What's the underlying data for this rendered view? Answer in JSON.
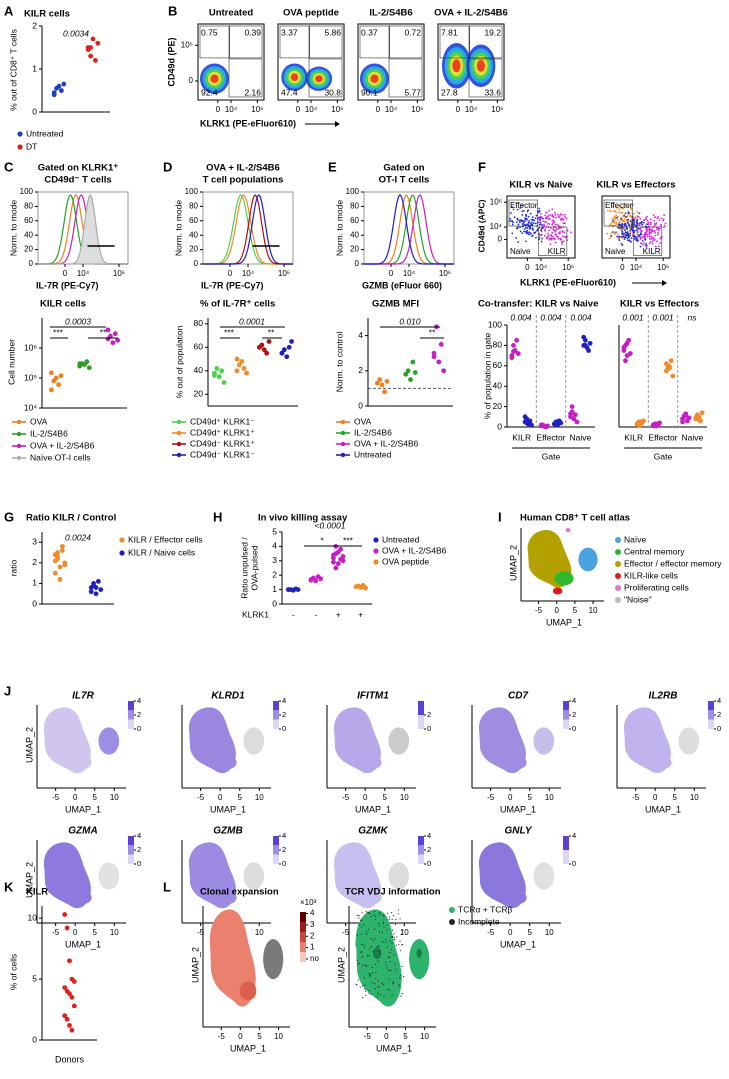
{
  "panel_labels": [
    "A",
    "B",
    "C",
    "D",
    "E",
    "F",
    "G",
    "H",
    "I",
    "J",
    "K",
    "L"
  ],
  "chart_data": [
    {
      "type": "strip",
      "title": "KILR cells",
      "ylabel": "% out of CD8⁺ T cells",
      "categories": [
        null,
        null
      ],
      "ylim": [
        0,
        2
      ],
      "yticks": [
        0,
        1,
        2
      ],
      "annotations": [
        "0.0034"
      ],
      "series": [
        {
          "name": "Untreated",
          "color": "#1f3fbf",
          "values": [
            [
              0.45,
              0.55,
              0.6,
              0.5,
              0.65,
              0.4
            ],
            null
          ]
        },
        {
          "name": "DT",
          "color": "#e0201b",
          "values": [
            null,
            [
              1.5,
              1.3,
              1.7,
              1.2,
              1.6,
              1.45,
              1.5
            ]
          ]
        }
      ]
    },
    {
      "type": "strip",
      "title": "KILR cells",
      "ylabel": "Cell number",
      "log": true,
      "categories": [
        null,
        null,
        null
      ],
      "ylim": [
        10000,
        10000000
      ],
      "yticks": [
        {
          "value": 10000,
          "label": "10⁴"
        },
        {
          "value": 100000,
          "label": "10⁵"
        },
        {
          "value": 1000000,
          "label": "10⁶"
        }
      ],
      "annotations": [
        "***",
        "0.0003",
        "**"
      ],
      "series": [
        {
          "name": "OVA",
          "color": "#f07f1e",
          "values": [
            [
              150000,
              80000,
              100000,
              60000,
              120000,
              40000
            ],
            null,
            null
          ]
        },
        {
          "name": "IL-2/S4B6",
          "color": "#2aa02a",
          "values": [
            null,
            [
              250000,
              300000,
              280000,
              350000,
              220000,
              300000
            ],
            null
          ]
        },
        {
          "name": "OVA + IL-2/S4B6",
          "color": "#c41ec4",
          "values": [
            null,
            null,
            [
              2000000,
              2500000,
              1500000,
              3000000,
              1800000,
              4000000
            ]
          ]
        }
      ],
      "legend_extra": {
        "name": "Naïve OT-I cells",
        "color": "#b0b0b0"
      }
    },
    {
      "type": "strip",
      "title": "% of IL-7R⁺ cells",
      "ylabel": "% out of population",
      "categories": [
        null,
        null,
        null,
        null
      ],
      "ylim": [
        10,
        85
      ],
      "yticks": [
        20,
        40,
        60,
        80
      ],
      "annotations": [
        "***",
        "0.0001",
        "**"
      ],
      "series": [
        {
          "name": "CD49d⁺ KLRK1⁻",
          "color": "#4cd14c",
          "values": [
            [
              38,
              42,
              35,
              40,
              30,
              36
            ],
            null,
            null,
            null
          ]
        },
        {
          "name": "CD49d⁺ KLRK1⁺",
          "color": "#f08a2a",
          "values": [
            null,
            [
              40,
              45,
              48,
              42,
              38,
              50
            ],
            null,
            null
          ]
        },
        {
          "name": "CD49d⁻ KLRK1⁺",
          "color": "#b01010",
          "values": [
            null,
            null,
            [
              60,
              62,
              58,
              55,
              65,
              60
            ],
            null
          ]
        },
        {
          "name": "CD49d⁻ KLRK1⁻",
          "color": "#2020c0",
          "values": [
            null,
            null,
            null,
            [
              55,
              58,
              52,
              60,
              65,
              55
            ]
          ]
        }
      ]
    },
    {
      "type": "strip",
      "title": "GZMB MFI",
      "ylabel": "Norm. to control",
      "categories": [
        null,
        null,
        null
      ],
      "ylim": [
        0,
        5
      ],
      "yticks": [
        0,
        2,
        4
      ],
      "annotations": [
        "0.010",
        "**"
      ],
      "series": [
        {
          "name": "OVA",
          "color": "#f07f1e",
          "values": [
            [
              1.3,
              1.5,
              1.2,
              0.8,
              1.4
            ],
            null,
            null
          ]
        },
        {
          "name": "IL-2/S4B6",
          "color": "#2aa02a",
          "values": [
            null,
            [
              1.8,
              2.0,
              1.5,
              2.5,
              1.9
            ],
            null
          ]
        },
        {
          "name": "OVA + IL-2/S4B6",
          "color": "#c41ec4",
          "values": [
            null,
            null,
            [
              3.0,
              4.5,
              2.5,
              3.5,
              2.0,
              2.8
            ]
          ]
        }
      ],
      "reference": {
        "name": "Untreated",
        "value": 1,
        "color": "#2020c0"
      }
    },
    {
      "type": "strip",
      "title": "Co-transfer: KILR vs Naive",
      "ylabel": "% of population in gate",
      "xlabel": "Gate",
      "categories": [
        "KILR",
        "Effector",
        "Naive"
      ],
      "ylim": [
        0,
        100
      ],
      "yticks": [
        0,
        20,
        40,
        60,
        80,
        100
      ],
      "annotations": [
        "0.004",
        "0.004",
        "0.004"
      ],
      "series": [
        {
          "color": "#c41ec4",
          "values": [
            [
              70,
              80,
              75,
              85,
              72,
              68,
              74
            ],
            [
              1,
              2,
              1,
              0,
              1,
              2,
              1
            ],
            [
              10,
              15,
              8,
              12,
              5,
              13,
              20
            ]
          ]
        },
        {
          "color": "#2020c0",
          "values": [
            [
              5,
              8,
              3,
              6,
              2,
              10,
              4
            ],
            [
              3,
              5,
              2,
              6,
              4,
              3,
              5
            ],
            [
              80,
              85,
              78,
              75,
              82,
              88,
              80
            ]
          ]
        }
      ]
    },
    {
      "type": "strip",
      "title": "KILR vs Effectors",
      "xlabel": "Gate",
      "categories": [
        "KILR",
        "Effector",
        "Naive"
      ],
      "ylim": [
        0,
        100
      ],
      "annotations": [
        "0.001",
        "0.001",
        "ns"
      ],
      "series": [
        {
          "color": "#c41ec4",
          "values": [
            [
              75,
              80,
              70,
              85,
              72,
              78,
              65,
              82
            ],
            [
              2,
              3,
              1,
              2,
              4,
              1,
              2,
              3
            ],
            [
              8,
              10,
              12,
              6,
              9,
              5,
              11,
              13
            ]
          ]
        },
        {
          "color": "#f08a2a",
          "values": [
            [
              3,
              5,
              2,
              4,
              6,
              3,
              2,
              5
            ],
            [
              55,
              60,
              58,
              65,
              50,
              62,
              57,
              59
            ],
            [
              8,
              12,
              10,
              6,
              14,
              9,
              11,
              7
            ]
          ]
        }
      ]
    },
    {
      "type": "strip",
      "title": "Ratio KILR / Control",
      "ylabel": "ratio",
      "categories": [
        null,
        null
      ],
      "ylim": [
        0,
        3.5
      ],
      "yticks": [
        0,
        1,
        2,
        3
      ],
      "annotations": [
        "0.0024"
      ],
      "series": [
        {
          "name": "KILR / Effector cells",
          "color": "#f08a2a",
          "values": [
            [
              2.1,
              2.5,
              1.8,
              2.8,
              2.0,
              1.5,
              2.3,
              1.2,
              2.6,
              1.9,
              2.4,
              2.2
            ],
            null
          ]
        },
        {
          "name": "KILR / Naive cells",
          "color": "#2020c0",
          "values": [
            null,
            [
              0.8,
              0.9,
              0.5,
              1.1,
              0.7,
              0.6,
              1.0,
              0.8
            ]
          ]
        }
      ]
    },
    {
      "type": "strip",
      "title": "In vivo killing assay",
      "ylabel": [
        "Ratio unpulsed /",
        "OVA-pulsed"
      ],
      "xlabel": "KLRK1",
      "categories": [
        "-",
        "-",
        "+",
        "+"
      ],
      "ylim": [
        0,
        5
      ],
      "yticks": [
        0,
        1,
        2,
        3,
        4,
        5
      ],
      "annotations": [
        "<0.0001",
        "*",
        "***"
      ],
      "series": [
        {
          "name": "Untreated",
          "color": "#2020c0",
          "values": [
            [
              1,
              1,
              0.95,
              1.05,
              1,
              1
            ],
            null,
            null,
            null
          ]
        },
        {
          "name": "OVA + IL-2/S4B6",
          "color": "#c41ec4",
          "values": [
            null,
            [
              1.7,
              1.8,
              1.6,
              1.9,
              1.75,
              1.65
            ],
            [
              3.2,
              3.5,
              2.8,
              3.8,
              3.0,
              3.4,
              2.5,
              3.6,
              3.1,
              3.3,
              2.9,
              4.0
            ],
            null
          ]
        },
        {
          "name": "OVA peptide",
          "color": "#f08a2a",
          "values": [
            null,
            null,
            null,
            [
              1.2,
              1.25,
              1.15,
              1.3,
              1.1
            ]
          ]
        }
      ]
    },
    {
      "type": "strip",
      "title": "KILR-like cells",
      "ylabel": "% of cells",
      "xlabel": "Donors",
      "categories": [
        null
      ],
      "ylim": [
        0,
        11
      ],
      "yticks": [
        0,
        5,
        10
      ],
      "annotations": [],
      "series": [
        {
          "color": "#e0201b",
          "values": [
            [
              10.3,
              9.2,
              6.5,
              5.0,
              4.8,
              4.3,
              4.0,
              3.8,
              3.5,
              2.8,
              2.0,
              1.7,
              1.2,
              0.8
            ]
          ]
        }
      ]
    }
  ],
  "flow_b": {
    "ylabel": "CD49d (PE)",
    "xlabel": "KLRK1 (PE-eFluor610)",
    "yticks": [
      {
        "value": 100000,
        "label": "10⁵"
      },
      0
    ],
    "xticks": [
      0,
      {
        "value": 10000,
        "label": "10⁴"
      },
      {
        "value": 1000000,
        "label": "10⁶"
      }
    ],
    "plots": [
      {
        "title": "Untreated",
        "quadrants": [
          0.75,
          0.39,
          92.4,
          2.16
        ]
      },
      {
        "title": "OVA peptide",
        "quadrants": [
          3.37,
          5.86,
          47.4,
          30.8
        ]
      },
      {
        "title": "IL-2/S4B6",
        "quadrants": [
          0.37,
          0.72,
          90.1,
          5.77
        ]
      },
      {
        "title": "OVA + IL-2/S4B6",
        "quadrants": [
          7.81,
          19.2,
          27.8,
          33.6
        ]
      }
    ]
  },
  "histograms": [
    {
      "title": "Gated on KLRK1⁺",
      "subtitle": "CD49d⁻ T cells",
      "ylabel": "Norm. to mode",
      "xlabel": "IL-7R (PE-Cy7)",
      "yticks": [
        0,
        20,
        40,
        60,
        80,
        100
      ],
      "xticks": [
        0,
        {
          "value": 10000,
          "label": "10⁴"
        },
        {
          "value": 1000000,
          "label": "10⁶"
        }
      ]
    },
    {
      "title": "OVA + IL-2/S4B6",
      "subtitle": "T cell populations",
      "ylabel": "Norm. to mode",
      "xlabel": "IL-7R (PE-Cy7)",
      "yticks": [
        0,
        20,
        40,
        60,
        80,
        100
      ],
      "xticks": [
        0,
        {
          "value": 10000,
          "label": "10⁴"
        },
        {
          "value": 1000000,
          "label": "10⁶"
        }
      ]
    },
    {
      "title": "Gated on",
      "subtitle": "OT-I T cells",
      "ylabel": "Norm. to mode",
      "xlabel": "GZMB (eFluor 660)",
      "yticks": [
        0,
        20,
        40,
        60,
        80,
        100
      ],
      "xticks": [
        0,
        {
          "value": 10000,
          "label": "10⁴"
        },
        {
          "value": 1000000,
          "label": "10⁶"
        }
      ]
    }
  ],
  "flow_f": {
    "titles": [
      "KILR vs Naive",
      "KILR vs Effectors"
    ],
    "ylabel": "CD49d (APC)",
    "xlabel": "KLRK1 (PE-eFluor610)",
    "yticks": [
      {
        "value": 1000000,
        "label": "10⁶"
      },
      {
        "value": 10000,
        "label": "10⁴"
      },
      0
    ],
    "xticks": [
      0,
      {
        "value": 10000,
        "label": "10⁴"
      },
      {
        "value": 1000000,
        "label": "10⁶"
      }
    ],
    "gates": [
      "Effector",
      "Naive",
      "KILR"
    ]
  },
  "umap_axes": {
    "xlabel": "UMAP_1",
    "ylabel": "UMAP_2",
    "xticks": [
      -5,
      0,
      5,
      10
    ]
  },
  "umap_i": {
    "title": "Human CD8⁺ T cell atlas",
    "legend": [
      {
        "name": "Naïve",
        "color": "#4aa3df"
      },
      {
        "name": "Central memory",
        "color": "#2eb82e"
      },
      {
        "name": "Effector / effector memory",
        "color": "#b3a100"
      },
      {
        "name": "KILR-like cells",
        "color": "#e31a1c"
      },
      {
        "name": "Proliferating cells",
        "color": "#e377c2"
      },
      {
        "name": "\"Noise\"",
        "color": "#bbbbbb"
      }
    ]
  },
  "umap_j": [
    {
      "gene": "IL7R",
      "scale_ticks": [
        4,
        2,
        0
      ]
    },
    {
      "gene": "KLRD1",
      "scale_ticks": [
        4,
        2,
        0
      ]
    },
    {
      "gene": "IFITM1",
      "scale_ticks": [
        2,
        0
      ]
    },
    {
      "gene": "CD7",
      "scale_ticks": [
        4,
        2,
        0
      ]
    },
    {
      "gene": "IL2RB",
      "scale_ticks": [
        4,
        2,
        0
      ]
    },
    {
      "gene": "GZMA",
      "scale_ticks": [
        4,
        2,
        0
      ]
    },
    {
      "gene": "GZMB",
      "scale_ticks": [
        4,
        2,
        0
      ]
    },
    {
      "gene": "GZMK",
      "scale_ticks": [
        4,
        2,
        0
      ]
    },
    {
      "gene": "GNLY",
      "scale_ticks": [
        4,
        0
      ]
    }
  ],
  "umap_l": {
    "title": "Clonal expansion",
    "scale_unit": "×10³",
    "scale_ticks": [
      4,
      3,
      2,
      1,
      {
        "value": 0,
        "label": "no"
      }
    ],
    "tcr_title": "TCR VDJ information",
    "tcr_legend": [
      {
        "name": "TCRα + TCRβ",
        "color": "#2db36b"
      },
      {
        "name": "Incomplete",
        "color": "#222222"
      }
    ]
  }
}
